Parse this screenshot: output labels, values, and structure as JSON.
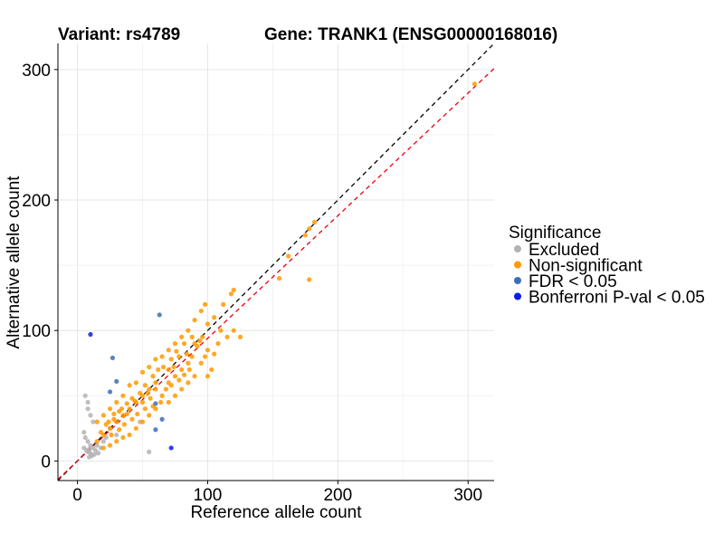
{
  "chart_data": {
    "type": "scatter",
    "title_variant": "Variant: rs4789",
    "title_gene": "Gene: TRANK1 (ENSG00000168016)",
    "xlabel": "Reference allele count",
    "ylabel": "Alternative allele count",
    "xlim": [
      -15,
      320
    ],
    "ylim": [
      -15,
      320
    ],
    "x_ticks": [
      0,
      100,
      200,
      300
    ],
    "y_ticks": [
      0,
      100,
      200,
      300
    ],
    "x_tick_labels": [
      "0",
      "100",
      "200",
      "300"
    ],
    "y_tick_labels": [
      "0",
      "100",
      "200",
      "300"
    ],
    "grid": true,
    "legend": {
      "title": "Significance",
      "position": "right",
      "items": [
        {
          "label": "Excluded",
          "color": "#b3b3b3"
        },
        {
          "label": "Non-significant",
          "color": "#ff9900"
        },
        {
          "label": "FDR < 0.05",
          "color": "#3d6fb5"
        },
        {
          "label": "Bonferroni P-val < 0.05",
          "color": "#0a1ee6"
        }
      ]
    },
    "reference_lines": [
      {
        "name": "identity",
        "slope": 1.0,
        "intercept": 0,
        "color": "#000000",
        "dash": true
      },
      {
        "name": "fit",
        "slope": 0.94,
        "intercept": 0,
        "color": "#e8000b",
        "dash": true
      }
    ],
    "series": [
      {
        "name": "Excluded",
        "color": "#b3b3b3",
        "points": [
          [
            5,
            10
          ],
          [
            7,
            8
          ],
          [
            8,
            7
          ],
          [
            9,
            9
          ],
          [
            10,
            12
          ],
          [
            6,
            50
          ],
          [
            8,
            45
          ],
          [
            8,
            40
          ],
          [
            10,
            35
          ],
          [
            12,
            30
          ],
          [
            5,
            22
          ],
          [
            6,
            18
          ],
          [
            8,
            15
          ],
          [
            10,
            6
          ],
          [
            12,
            10
          ],
          [
            14,
            8
          ],
          [
            15,
            12
          ],
          [
            18,
            10
          ],
          [
            20,
            15
          ],
          [
            16,
            6
          ],
          [
            55,
            7
          ],
          [
            48,
            30
          ],
          [
            25,
            25
          ],
          [
            30,
            20
          ],
          [
            22,
            18
          ],
          [
            11,
            4
          ],
          [
            9,
            3
          ],
          [
            13,
            5
          ]
        ]
      },
      {
        "name": "Non-significant",
        "color": "#ff9900",
        "points": [
          [
            305,
            289
          ],
          [
            182,
            183
          ],
          [
            178,
            178
          ],
          [
            175,
            173
          ],
          [
            162,
            157
          ],
          [
            155,
            140
          ],
          [
            178,
            139
          ],
          [
            120,
            131
          ],
          [
            118,
            128
          ],
          [
            112,
            120
          ],
          [
            98,
            120
          ],
          [
            95,
            115
          ],
          [
            100,
            105
          ],
          [
            105,
            110
          ],
          [
            110,
            100
          ],
          [
            90,
            108
          ],
          [
            85,
            100
          ],
          [
            115,
            95
          ],
          [
            108,
            90
          ],
          [
            100,
            85
          ],
          [
            98,
            80
          ],
          [
            95,
            75
          ],
          [
            103,
            70
          ],
          [
            90,
            65
          ],
          [
            85,
            60
          ],
          [
            80,
            55
          ],
          [
            75,
            50
          ],
          [
            70,
            45
          ],
          [
            100,
            65
          ],
          [
            105,
            82
          ],
          [
            80,
            95
          ],
          [
            75,
            90
          ],
          [
            70,
            85
          ],
          [
            65,
            80
          ],
          [
            60,
            78
          ],
          [
            55,
            72
          ],
          [
            50,
            68
          ],
          [
            45,
            60
          ],
          [
            40,
            58
          ],
          [
            35,
            50
          ],
          [
            30,
            45
          ],
          [
            25,
            40
          ],
          [
            20,
            35
          ],
          [
            15,
            30
          ],
          [
            60,
            40
          ],
          [
            55,
            35
          ],
          [
            50,
            30
          ],
          [
            45,
            25
          ],
          [
            40,
            20
          ],
          [
            35,
            18
          ],
          [
            30,
            15
          ],
          [
            25,
            12
          ],
          [
            20,
            10
          ],
          [
            65,
            50
          ],
          [
            70,
            60
          ],
          [
            75,
            65
          ],
          [
            80,
            70
          ],
          [
            85,
            75
          ],
          [
            88,
            80
          ],
          [
            92,
            88
          ],
          [
            96,
            95
          ],
          [
            60,
            60
          ],
          [
            55,
            55
          ],
          [
            50,
            50
          ],
          [
            45,
            45
          ],
          [
            40,
            40
          ],
          [
            35,
            35
          ],
          [
            30,
            30
          ],
          [
            25,
            25
          ],
          [
            20,
            20
          ],
          [
            15,
            15
          ],
          [
            62,
            70
          ],
          [
            58,
            65
          ],
          [
            52,
            58
          ],
          [
            48,
            52
          ],
          [
            42,
            48
          ],
          [
            38,
            44
          ],
          [
            32,
            38
          ],
          [
            28,
            32
          ],
          [
            22,
            28
          ],
          [
            18,
            22
          ],
          [
            68,
            55
          ],
          [
            72,
            58
          ],
          [
            78,
            62
          ],
          [
            82,
            66
          ],
          [
            86,
            70
          ],
          [
            66,
            72
          ],
          [
            72,
            78
          ],
          [
            76,
            84
          ],
          [
            82,
            90
          ],
          [
            64,
            45
          ],
          [
            58,
            42
          ],
          [
            52,
            40
          ],
          [
            46,
            36
          ],
          [
            42,
            32
          ],
          [
            36,
            28
          ],
          [
            32,
            24
          ],
          [
            26,
            20
          ],
          [
            56,
            48
          ],
          [
            44,
            46
          ],
          [
            38,
            36
          ],
          [
            34,
            40
          ],
          [
            28,
            36
          ],
          [
            24,
            30
          ],
          [
            50,
            45
          ],
          [
            54,
            52
          ],
          [
            60,
            55
          ],
          [
            70,
            70
          ],
          [
            74,
            72
          ],
          [
            78,
            80
          ],
          [
            84,
            82
          ],
          [
            90,
            90
          ],
          [
            94,
            92
          ],
          [
            88,
            95
          ],
          [
            120,
            100
          ],
          [
            125,
            95
          ]
        ]
      },
      {
        "name": "FDR < 0.05",
        "color": "#3d6fb5",
        "points": [
          [
            63,
            112
          ],
          [
            27,
            79
          ],
          [
            30,
            61
          ],
          [
            25,
            53
          ],
          [
            65,
            32
          ],
          [
            60,
            24
          ],
          [
            60,
            44
          ]
        ]
      },
      {
        "name": "Bonferroni P-val < 0.05",
        "color": "#0a1ee6",
        "points": [
          [
            10,
            97
          ],
          [
            72,
            10
          ]
        ]
      }
    ]
  }
}
